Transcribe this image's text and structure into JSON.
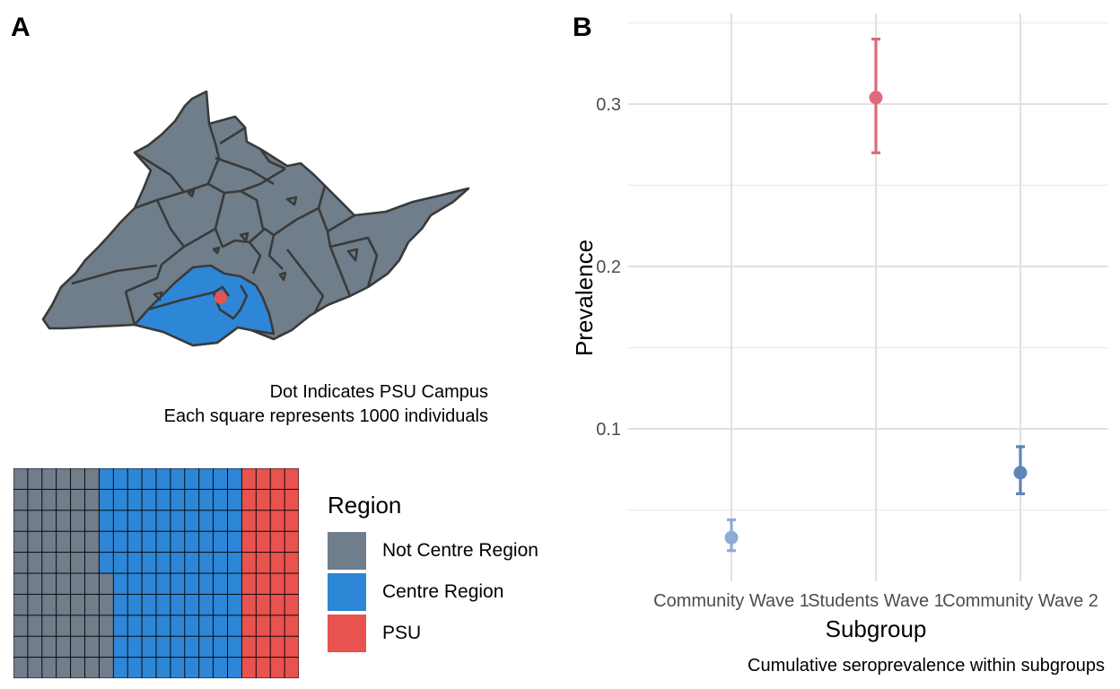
{
  "panel_a": {
    "tag": "A",
    "note_line1": "Dot Indicates PSU Campus",
    "note_line2": "Each square represents 1000 individuals",
    "colors": {
      "not_centre": "#707d8b",
      "centre": "#2e86d6",
      "psu": "#e8524f",
      "border": "#3a3a3a"
    },
    "legend": {
      "title": "Region",
      "items": [
        {
          "label": "Not Centre Region",
          "color": "#707d8b"
        },
        {
          "label": "Centre Region",
          "color": "#2e86d6"
        },
        {
          "label": "PSU",
          "color": "#e8524f"
        }
      ]
    },
    "waffle": {
      "rows": 10,
      "cols": 20,
      "not_centre_cols": 6.3,
      "centre_cols": 10,
      "psu_cols": 4
    }
  },
  "panel_b": {
    "tag": "B",
    "caption": "Cumulative seroprevalence within subgroups"
  },
  "chart_data": {
    "type": "scatter",
    "xlabel": "Subgroup",
    "ylabel": "Prevalence",
    "categories": [
      "Community Wave 1",
      "Students Wave 1",
      "Community Wave 2"
    ],
    "values": [
      0.033,
      0.304,
      0.073
    ],
    "lower": [
      0.025,
      0.27,
      0.06
    ],
    "upper": [
      0.044,
      0.34,
      0.089
    ],
    "colors": [
      "#8fabd4",
      "#dd6b7a",
      "#5f85ba"
    ],
    "yticks": [
      0.1,
      0.2,
      0.3
    ],
    "ytick_labels": [
      "0.1",
      "0.2",
      "0.3"
    ],
    "ylim": [
      0.027,
      0.35
    ],
    "grid": true
  }
}
